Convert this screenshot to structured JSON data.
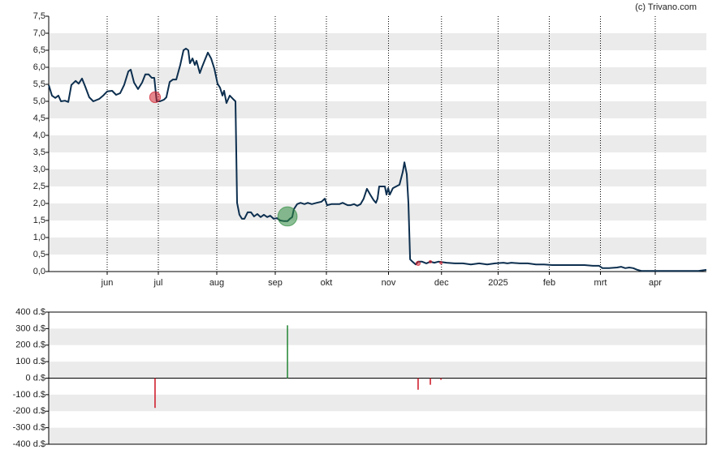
{
  "chart_data": [
    {
      "type": "line",
      "credit": "(c) Trivano.com",
      "color": "#0d2f4f",
      "band_color": "#ebebeb",
      "xgrid": true,
      "xlim": [
        0,
        360
      ],
      "ylim": [
        0,
        7.5
      ],
      "xticks": [
        {
          "value": 32,
          "label": "jun"
        },
        {
          "value": 60,
          "label": "jul"
        },
        {
          "value": 92,
          "label": "aug"
        },
        {
          "value": 124,
          "label": "sep"
        },
        {
          "value": 152,
          "label": "okt"
        },
        {
          "value": 186,
          "label": "nov"
        },
        {
          "value": 215,
          "label": "dec"
        },
        {
          "value": 246,
          "label": "2025"
        },
        {
          "value": 274,
          "label": "feb"
        },
        {
          "value": 302,
          "label": "mrt"
        },
        {
          "value": 332,
          "label": "apr"
        }
      ],
      "yticks": [
        {
          "value": 0,
          "label": "0,0"
        },
        {
          "value": 0.5,
          "label": "0,5"
        },
        {
          "value": 1,
          "label": "1,0"
        },
        {
          "value": 1.5,
          "label": "1,5"
        },
        {
          "value": 2,
          "label": "2,0"
        },
        {
          "value": 2.5,
          "label": "2,5"
        },
        {
          "value": 3,
          "label": "3,0"
        },
        {
          "value": 3.5,
          "label": "3,5"
        },
        {
          "value": 4,
          "label": "4,0"
        },
        {
          "value": 4.5,
          "label": "4,5"
        },
        {
          "value": 5,
          "label": "5,0"
        },
        {
          "value": 5.5,
          "label": "5,5"
        },
        {
          "value": 6,
          "label": "6,0"
        },
        {
          "value": 6.5,
          "label": "6,5"
        },
        {
          "value": 7,
          "label": "7,0"
        },
        {
          "value": 7.5,
          "label": "7,5"
        }
      ],
      "x": [
        0,
        1.8,
        3.6,
        5.3,
        6.7,
        8.9,
        10.7,
        12.4,
        14.7,
        16.4,
        18.2,
        20,
        22.2,
        24.4,
        27.6,
        29.8,
        32,
        34.7,
        36.9,
        39.1,
        41.3,
        43.6,
        44.9,
        46.7,
        48.9,
        51.1,
        52.9,
        54.7,
        56.4,
        57.8,
        59.1,
        60.9,
        63.1,
        64.4,
        66.2,
        68,
        69.8,
        72,
        73.8,
        75.1,
        76.4,
        77.3,
        78.7,
        80,
        80.9,
        82.7,
        84,
        85.3,
        87.1,
        88.9,
        90.7,
        92.4,
        93.8,
        95.1,
        96,
        97.3,
        99.1,
        100.9,
        102.2,
        103.1,
        104.4,
        105.8,
        107.1,
        108.9,
        110.7,
        112.4,
        114.2,
        116,
        117.8,
        119.6,
        121.3,
        123.1,
        124.9,
        126.7,
        128.9,
        130.7,
        132,
        133.3,
        134.2,
        136,
        137.8,
        140,
        141.8,
        144,
        146.7,
        149.3,
        151.1,
        152.4,
        154.7,
        156.4,
        159.1,
        160.9,
        163.6,
        165.3,
        167.1,
        168.9,
        170.7,
        172.4,
        174.2,
        176,
        177.8,
        179.1,
        180,
        180.9,
        182.2,
        184,
        184.9,
        185.8,
        186.7,
        188.4,
        190.2,
        192,
        193.8,
        194.7,
        196,
        196.9,
        197.8,
        199.1,
        200.9,
        202.2,
        204.4,
        206.7,
        208.9,
        211.1,
        213.3,
        217.8,
        222.2,
        226.7,
        231.1,
        235.6,
        240,
        244.4,
        248.9,
        251.1,
        253.3,
        257.8,
        262.2,
        266.7,
        271.1,
        275.6,
        280,
        284.4,
        288.9,
        293.3,
        297.8,
        301.3,
        303.1,
        306.7,
        311.1,
        313.3,
        315.6,
        317.8,
        320,
        322.2,
        324.4,
        337.8,
        355.6,
        360
      ],
      "values": [
        5.48,
        5.17,
        5.1,
        5.17,
        5.0,
        5.02,
        4.98,
        5.48,
        5.6,
        5.52,
        5.67,
        5.43,
        5.12,
        5.0,
        5.07,
        5.17,
        5.29,
        5.31,
        5.19,
        5.24,
        5.48,
        5.88,
        5.93,
        5.55,
        5.36,
        5.55,
        5.79,
        5.79,
        5.69,
        5.69,
        5.0,
        5.0,
        5.05,
        5.12,
        5.57,
        5.64,
        5.64,
        6.07,
        6.5,
        6.55,
        6.5,
        6.12,
        6.26,
        6.07,
        6.19,
        5.83,
        6.02,
        6.19,
        6.43,
        6.26,
        5.95,
        5.52,
        5.4,
        5.17,
        5.31,
        4.95,
        5.17,
        5.07,
        5.0,
        2.02,
        1.67,
        1.55,
        1.55,
        1.74,
        1.74,
        1.62,
        1.69,
        1.6,
        1.67,
        1.6,
        1.64,
        1.55,
        1.57,
        1.5,
        1.48,
        1.48,
        1.55,
        1.6,
        1.83,
        1.98,
        2.02,
        1.98,
        2.02,
        1.98,
        2.02,
        2.05,
        2.14,
        1.95,
        1.98,
        1.98,
        1.98,
        2.02,
        1.95,
        1.95,
        1.98,
        1.93,
        1.98,
        2.14,
        2.43,
        2.26,
        2.1,
        2.02,
        2.14,
        2.5,
        2.5,
        2.5,
        2.26,
        2.45,
        2.26,
        2.45,
        2.5,
        2.55,
        2.93,
        3.21,
        2.86,
        2.02,
        0.36,
        0.29,
        0.21,
        0.29,
        0.29,
        0.24,
        0.29,
        0.26,
        0.29,
        0.26,
        0.24,
        0.24,
        0.21,
        0.24,
        0.21,
        0.24,
        0.26,
        0.24,
        0.26,
        0.24,
        0.24,
        0.21,
        0.21,
        0.19,
        0.19,
        0.19,
        0.19,
        0.19,
        0.17,
        0.17,
        0.1,
        0.1,
        0.12,
        0.14,
        0.1,
        0.12,
        0.1,
        0.05,
        0.02,
        0.02,
        0.02,
        0.05
      ],
      "markers": {
        "x": [
          58.2,
          130.7,
          202.2,
          208.9,
          214.7
        ],
        "y": [
          5.12,
          1.62,
          0.24,
          0.29,
          0.26
        ]
      }
    },
    {
      "type": "bar",
      "band_color": "#ebebeb",
      "positive_color": "#2e8b3e",
      "negative_color": "#d0202e",
      "xlim": [
        0,
        360
      ],
      "ylim": [
        -400,
        400
      ],
      "yticks": [
        {
          "value": -400,
          "label": "-400 d.$"
        },
        {
          "value": -300,
          "label": "-300 d.$"
        },
        {
          "value": -200,
          "label": "-200 d.$"
        },
        {
          "value": -100,
          "label": "-100 d.$"
        },
        {
          "value": 0,
          "label": "0 d.$"
        },
        {
          "value": 100,
          "label": "100 d.$"
        },
        {
          "value": 200,
          "label": "200 d.$"
        },
        {
          "value": 300,
          "label": "300 d.$"
        },
        {
          "value": 400,
          "label": "400 d.$"
        }
      ],
      "x": [
        58.2,
        130.7,
        202.2,
        208.9,
        214.7
      ],
      "values": [
        -180,
        320,
        -70,
        -40,
        -10
      ]
    }
  ]
}
